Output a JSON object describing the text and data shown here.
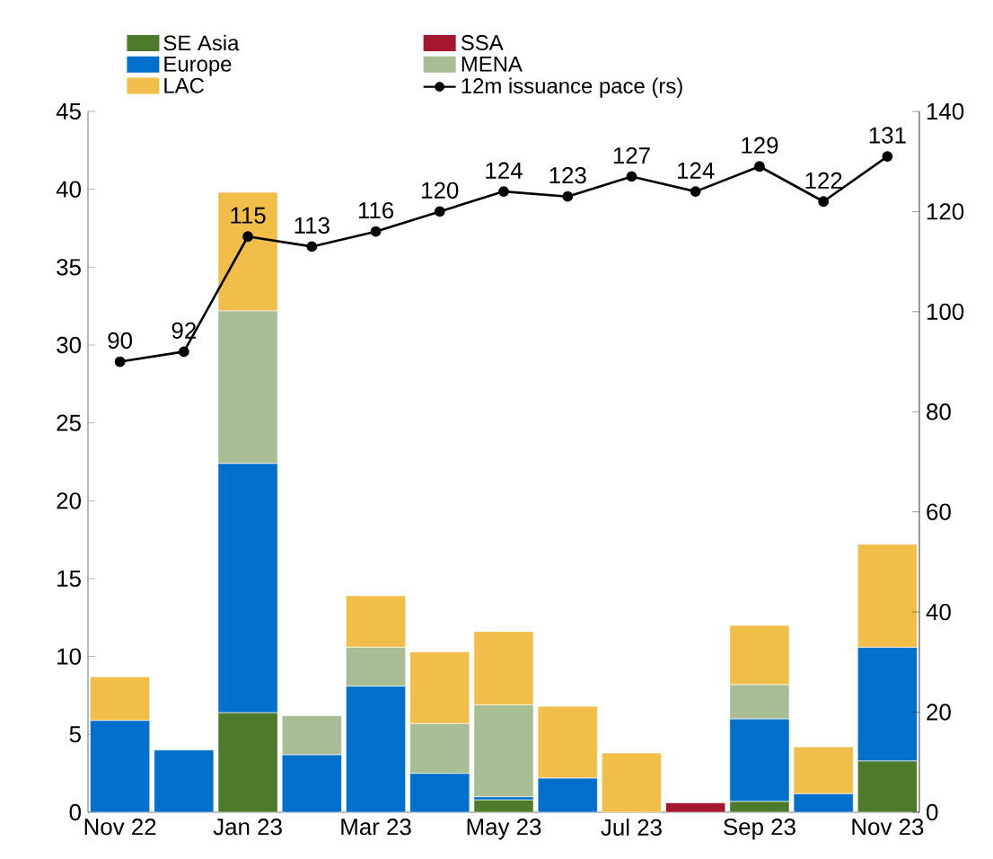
{
  "chart_data": {
    "type": "bar",
    "stacked": true,
    "categories": [
      "Nov 22",
      null,
      "Jan 23",
      null,
      "Mar 23",
      null,
      "May 23",
      null,
      "Jul 23",
      null,
      "Sep 23",
      null,
      "Nov 23"
    ],
    "series": [
      {
        "name": "SE Asia",
        "color": "#4e7a2c",
        "values": [
          null,
          null,
          6.4,
          null,
          null,
          null,
          0.8,
          null,
          null,
          null,
          0.7,
          null,
          3.3
        ]
      },
      {
        "name": "SSA",
        "color": "#a5172f",
        "values": [
          null,
          null,
          null,
          null,
          null,
          null,
          null,
          null,
          null,
          0.6,
          null,
          null,
          null
        ]
      },
      {
        "name": "Europe",
        "color": "#0070cc",
        "values": [
          5.9,
          4.0,
          16.0,
          3.7,
          8.1,
          2.5,
          0.2,
          2.2,
          null,
          null,
          5.3,
          1.2,
          7.3
        ]
      },
      {
        "name": "MENA",
        "color": "#a8bd94",
        "values": [
          null,
          null,
          9.8,
          2.5,
          2.5,
          3.2,
          5.9,
          null,
          null,
          null,
          2.2,
          null,
          null
        ]
      },
      {
        "name": "LAC",
        "color": "#f2be4a",
        "values": [
          2.8,
          null,
          7.6,
          null,
          3.3,
          4.6,
          4.7,
          4.6,
          3.8,
          null,
          3.8,
          3.0,
          6.6
        ]
      },
      {
        "name": "12m issuance pace (rs)",
        "type": "line",
        "axis": "y2",
        "color": "#000000",
        "marker": "circle",
        "data_labels": true,
        "values": [
          90,
          92,
          115,
          113,
          116,
          120,
          124,
          123,
          127,
          124,
          129,
          122,
          131
        ]
      }
    ],
    "ylim": [
      0,
      45
    ],
    "yticks": [
      0,
      5,
      10,
      15,
      20,
      25,
      30,
      35,
      40,
      45
    ],
    "y2lim": [
      0,
      140
    ],
    "y2ticks": [
      0,
      20,
      40,
      60,
      80,
      100,
      120,
      140
    ],
    "grid": false,
    "legend": "top"
  }
}
